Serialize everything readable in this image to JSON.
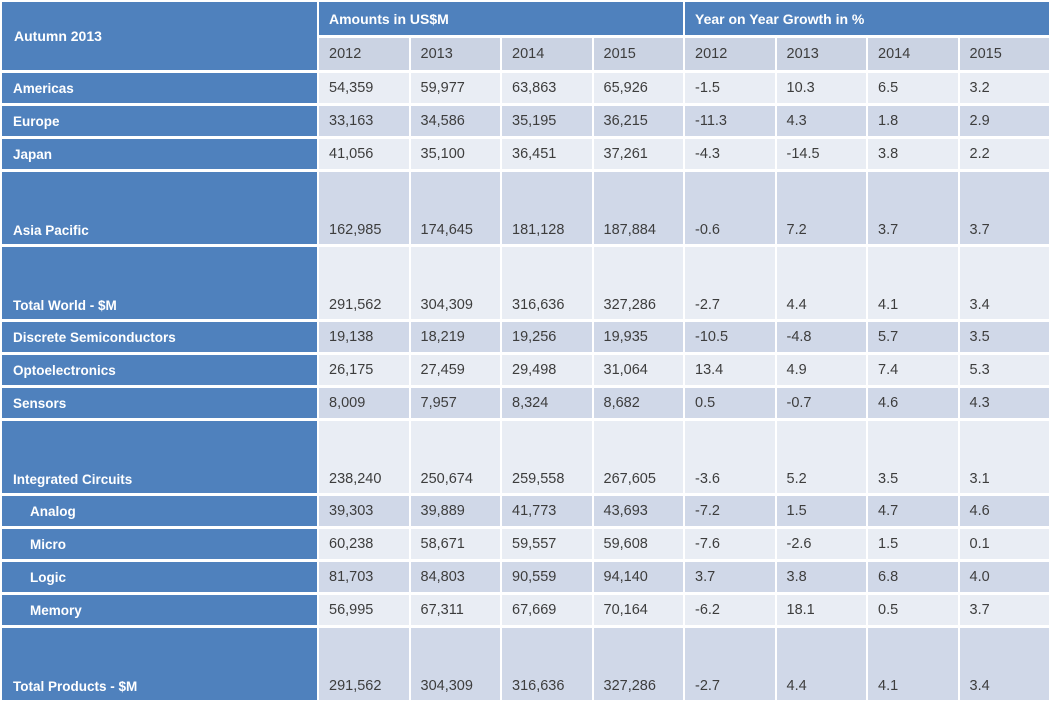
{
  "title": "Autumn 2013",
  "colors": {
    "header_blue": "#4f81bd",
    "row_light": "#e9edf4",
    "row_dark": "#d0d8e8",
    "year_header_bg": "#cbd3e3",
    "value_text": "#3d3d3d",
    "label_text": "#ffffff"
  },
  "chart_data": {
    "type": "table",
    "title": "Autumn 2013",
    "column_groups": [
      {
        "label": "Amounts in US$M",
        "columns": [
          "2012",
          "2013",
          "2014",
          "2015"
        ]
      },
      {
        "label": "Year on Year Growth in %",
        "columns": [
          "2012",
          "2013",
          "2014",
          "2015"
        ]
      }
    ],
    "rows": [
      {
        "label": "Americas",
        "indent": false,
        "tall": false,
        "amounts": [
          "54,359",
          "59,977",
          "63,863",
          "65,926"
        ],
        "growth": [
          "-1.5",
          "10.3",
          "6.5",
          "3.2"
        ]
      },
      {
        "label": "Europe",
        "indent": false,
        "tall": false,
        "amounts": [
          "33,163",
          "34,586",
          "35,195",
          "36,215"
        ],
        "growth": [
          "-11.3",
          "4.3",
          "1.8",
          "2.9"
        ]
      },
      {
        "label": "Japan",
        "indent": false,
        "tall": false,
        "amounts": [
          "41,056",
          "35,100",
          "36,451",
          "37,261"
        ],
        "growth": [
          "-4.3",
          "-14.5",
          "3.8",
          "2.2"
        ]
      },
      {
        "label": "Asia Pacific",
        "indent": false,
        "tall": true,
        "amounts": [
          "162,985",
          "174,645",
          "181,128",
          "187,884"
        ],
        "growth": [
          "-0.6",
          "7.2",
          "3.7",
          "3.7"
        ]
      },
      {
        "label": "Total World - $M",
        "indent": false,
        "tall": true,
        "amounts": [
          "291,562",
          "304,309",
          "316,636",
          "327,286"
        ],
        "growth": [
          "-2.7",
          "4.4",
          "4.1",
          "3.4"
        ]
      },
      {
        "label": "Discrete Semiconductors",
        "indent": false,
        "tall": false,
        "amounts": [
          "19,138",
          "18,219",
          "19,256",
          "19,935"
        ],
        "growth": [
          "-10.5",
          "-4.8",
          "5.7",
          "3.5"
        ]
      },
      {
        "label": "Optoelectronics",
        "indent": false,
        "tall": false,
        "amounts": [
          "26,175",
          "27,459",
          "29,498",
          "31,064"
        ],
        "growth": [
          "13.4",
          "4.9",
          "7.4",
          "5.3"
        ]
      },
      {
        "label": "Sensors",
        "indent": false,
        "tall": false,
        "amounts": [
          "8,009",
          "7,957",
          "8,324",
          "8,682"
        ],
        "growth": [
          "0.5",
          "-0.7",
          "4.6",
          "4.3"
        ]
      },
      {
        "label": "Integrated Circuits",
        "indent": false,
        "tall": true,
        "amounts": [
          "238,240",
          "250,674",
          "259,558",
          "267,605"
        ],
        "growth": [
          "-3.6",
          "5.2",
          "3.5",
          "3.1"
        ]
      },
      {
        "label": "Analog",
        "indent": true,
        "tall": false,
        "amounts": [
          "39,303",
          "39,889",
          "41,773",
          "43,693"
        ],
        "growth": [
          "-7.2",
          "1.5",
          "4.7",
          "4.6"
        ]
      },
      {
        "label": "Micro",
        "indent": true,
        "tall": false,
        "amounts": [
          "60,238",
          "58,671",
          "59,557",
          "59,608"
        ],
        "growth": [
          "-7.6",
          "-2.6",
          "1.5",
          "0.1"
        ]
      },
      {
        "label": "Logic",
        "indent": true,
        "tall": false,
        "amounts": [
          "81,703",
          "84,803",
          "90,559",
          "94,140"
        ],
        "growth": [
          "3.7",
          "3.8",
          "6.8",
          "4.0"
        ]
      },
      {
        "label": "Memory",
        "indent": true,
        "tall": false,
        "amounts": [
          "56,995",
          "67,311",
          "67,669",
          "70,164"
        ],
        "growth": [
          "-6.2",
          "18.1",
          "0.5",
          "3.7"
        ]
      },
      {
        "label": "Total Products - $M",
        "indent": false,
        "tall": true,
        "amounts": [
          "291,562",
          "304,309",
          "316,636",
          "327,286"
        ],
        "growth": [
          "-2.7",
          "4.4",
          "4.1",
          "3.4"
        ]
      }
    ]
  }
}
